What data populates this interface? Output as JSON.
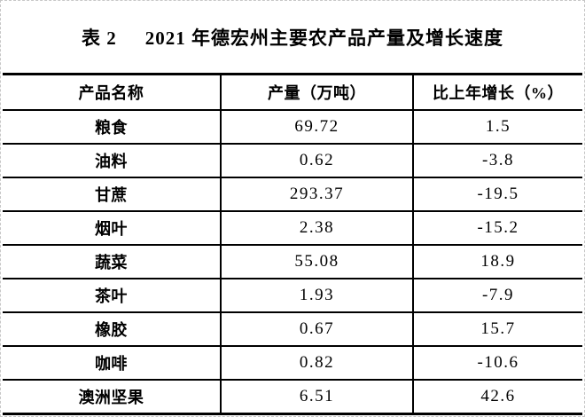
{
  "page": {
    "title_prefix": "表 2",
    "title_text": "2021 年德宏州主要农产品产量及增长速度"
  },
  "table": {
    "headers": [
      "产品名称",
      "产量（万吨）",
      "比上年增长（%）"
    ],
    "rows": [
      {
        "name": "粮食",
        "output": "69.72",
        "growth": "1.5"
      },
      {
        "name": "油料",
        "output": "0.62",
        "growth": "-3.8"
      },
      {
        "name": "甘蔗",
        "output": "293.37",
        "growth": "-19.5"
      },
      {
        "name": "烟叶",
        "output": "2.38",
        "growth": "-15.2"
      },
      {
        "name": "蔬菜",
        "output": "55.08",
        "growth": "18.9"
      },
      {
        "name": "茶叶",
        "output": "1.93",
        "growth": "-7.9"
      },
      {
        "name": "橡胶",
        "output": "0.67",
        "growth": "15.7"
      },
      {
        "name": "咖啡",
        "output": "0.82",
        "growth": "-10.6"
      },
      {
        "name": "澳洲坚果",
        "output": "6.51",
        "growth": "42.6"
      }
    ]
  },
  "chart_data": {
    "type": "table",
    "title": "表 2 2021 年德宏州主要农产品产量及增长速度",
    "columns": [
      "产品名称",
      "产量（万吨）",
      "比上年增长（%）"
    ],
    "categories": [
      "粮食",
      "油料",
      "甘蔗",
      "烟叶",
      "蔬菜",
      "茶叶",
      "橡胶",
      "咖啡",
      "澳洲坚果"
    ],
    "series": [
      {
        "name": "产量（万吨）",
        "values": [
          69.72,
          0.62,
          293.37,
          2.38,
          55.08,
          1.93,
          0.67,
          0.82,
          6.51
        ]
      },
      {
        "name": "比上年增长（%）",
        "values": [
          1.5,
          -3.8,
          -19.5,
          -15.2,
          18.9,
          -7.9,
          15.7,
          -10.6,
          42.6
        ]
      }
    ]
  },
  "colors": {
    "text": "#000000",
    "grid_line": "#000000",
    "page_edge": "#c6c6c6",
    "background": "#ffffff"
  }
}
